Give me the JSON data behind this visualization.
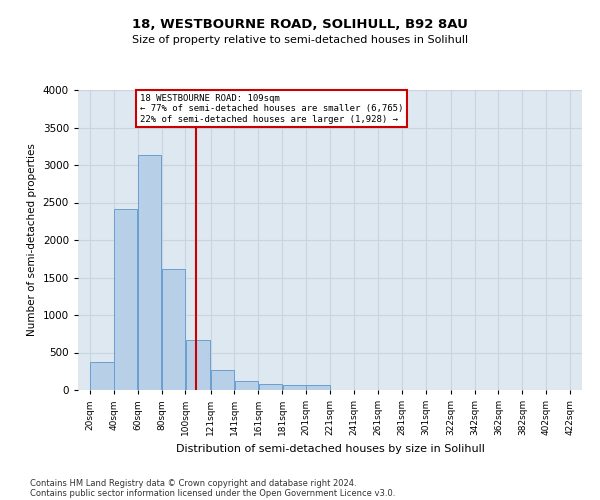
{
  "title1": "18, WESTBOURNE ROAD, SOLIHULL, B92 8AU",
  "title2": "Size of property relative to semi-detached houses in Solihull",
  "xlabel": "Distribution of semi-detached houses by size in Solihull",
  "ylabel": "Number of semi-detached properties",
  "footnote1": "Contains HM Land Registry data © Crown copyright and database right 2024.",
  "footnote2": "Contains public sector information licensed under the Open Government Licence v3.0.",
  "bar_left_edges": [
    20,
    40,
    60,
    80,
    100,
    121,
    141,
    161,
    181,
    201,
    221,
    241,
    261,
    281,
    301,
    322,
    342,
    362,
    382,
    402
  ],
  "bar_widths": [
    20,
    20,
    20,
    20,
    21,
    20,
    20,
    20,
    20,
    20,
    20,
    20,
    20,
    20,
    21,
    20,
    20,
    20,
    20,
    20
  ],
  "bar_heights": [
    370,
    2420,
    3130,
    1610,
    670,
    270,
    120,
    80,
    70,
    70,
    0,
    0,
    0,
    0,
    0,
    0,
    0,
    0,
    0,
    0
  ],
  "bar_facecolor": "#b8cfe8",
  "bar_edgecolor": "#6a9fd0",
  "grid_color": "#c8d4e0",
  "background_color": "#dde8f0",
  "vline_x": 109,
  "vline_color": "#cc0000",
  "annotation_box_color": "#cc0000",
  "annotation_box_bg": "#ffffff",
  "annotation_line1": "18 WESTBOURNE ROAD: 109sqm",
  "annotation_line2": "← 77% of semi-detached houses are smaller (6,765)",
  "annotation_line3": "22% of semi-detached houses are larger (1,928) →",
  "ylim": [
    0,
    4000
  ],
  "yticks": [
    0,
    500,
    1000,
    1500,
    2000,
    2500,
    3000,
    3500,
    4000
  ],
  "xtick_labels": [
    "20sqm",
    "40sqm",
    "60sqm",
    "80sqm",
    "100sqm",
    "121sqm",
    "141sqm",
    "161sqm",
    "181sqm",
    "201sqm",
    "221sqm",
    "241sqm",
    "261sqm",
    "281sqm",
    "301sqm",
    "322sqm",
    "342sqm",
    "362sqm",
    "382sqm",
    "402sqm",
    "422sqm"
  ],
  "xtick_positions": [
    20,
    40,
    60,
    80,
    100,
    121,
    141,
    161,
    181,
    201,
    221,
    241,
    261,
    281,
    301,
    322,
    342,
    362,
    382,
    402,
    422
  ],
  "xlim_left": 10,
  "xlim_right": 432
}
